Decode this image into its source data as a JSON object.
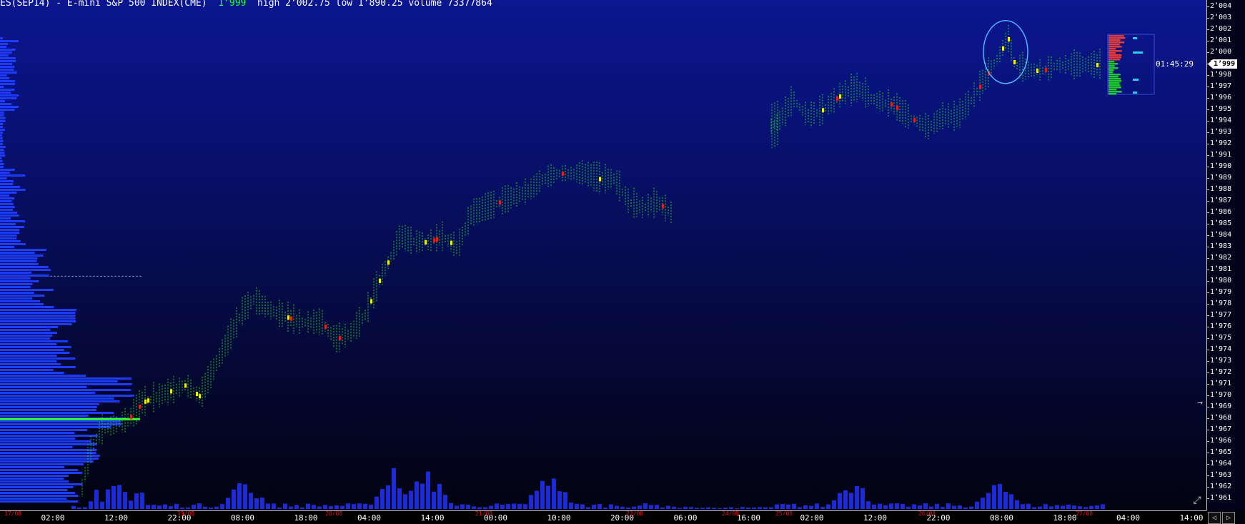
{
  "header": {
    "symbol": "ES(SEP14) - E-mini S&P 500 INDEX(CME)",
    "last_price": "1’999",
    "stats": "high 2’002.75 low 1’890.25 volume 73377864"
  },
  "price_axis": {
    "current_price": "1’999",
    "countdown": "01:45:29"
  },
  "colors": {
    "background_top": "#0b1690",
    "background_bottom": "#02020c",
    "profile": "#1d3cff",
    "poc_line": "#33ff33",
    "bar_green": "#22c92a",
    "bar_yellow": "#f4f400",
    "bar_red": "#e02020",
    "volume": "#1c2bd8",
    "highlight_circle": "#4fb4ff"
  },
  "icons": {
    "crosshair": "arrow-right-icon",
    "expand": "expand-icon",
    "scroll_left": "chevron-left-icon",
    "scroll_right": "chevron-right-icon"
  },
  "chart_data": {
    "type": "market-profile-with-volume",
    "ylim": [
      1960.5,
      2004.5
    ],
    "y_ticks": [
      "2’004",
      "2’003",
      "2’002",
      "2’001",
      "2’000",
      "1’999",
      "1’998",
      "1’997",
      "1’996",
      "1’995",
      "1’994",
      "1’993",
      "1’992",
      "1’991",
      "1’990",
      "1’989",
      "1’988",
      "1’987",
      "1’986",
      "1’985",
      "1’984",
      "1’983",
      "1’982",
      "1’981",
      "1’980",
      "1’979",
      "1’978",
      "1’977",
      "1’976",
      "1’975",
      "1’974",
      "1’973",
      "1’972",
      "1’971",
      "1’970",
      "1’969",
      "1’968",
      "1’967",
      "1’966",
      "1’965",
      "1’964",
      "1’963",
      "1’962",
      "1’961"
    ],
    "x_ticks": [
      "02:00",
      "12:00",
      "22:00",
      "08:00",
      "18:00",
      "04:00",
      "14:00",
      "00:00",
      "10:00",
      "20:00",
      "06:00",
      "16:00",
      "02:00",
      "12:00",
      "22:00",
      "08:00",
      "18:00",
      "04:00",
      "14:00"
    ],
    "date_tags": [
      "17/08",
      "19/08",
      "20/08",
      "21/08",
      "22/08",
      "24/08",
      "25/08",
      "26/08",
      "27/08"
    ],
    "price_path": [
      [
        115,
        1962
      ],
      [
        125,
        1965
      ],
      [
        140,
        1967
      ],
      [
        160,
        1967.5
      ],
      [
        180,
        1968
      ],
      [
        200,
        1969.5
      ],
      [
        220,
        1970
      ],
      [
        240,
        1970.5
      ],
      [
        260,
        1971
      ],
      [
        280,
        1970
      ],
      [
        300,
        1972.5
      ],
      [
        320,
        1975
      ],
      [
        340,
        1977.5
      ],
      [
        355,
        1978.5
      ],
      [
        380,
        1977.5
      ],
      [
        400,
        1977
      ],
      [
        420,
        1976.5
      ],
      [
        450,
        1976.5
      ],
      [
        470,
        1975
      ],
      [
        490,
        1975.5
      ],
      [
        510,
        1977
      ],
      [
        530,
        1980
      ],
      [
        545,
        1982
      ],
      [
        560,
        1984
      ],
      [
        580,
        1983.5
      ],
      [
        600,
        1983.5
      ],
      [
        620,
        1984
      ],
      [
        640,
        1983
      ],
      [
        660,
        1986
      ],
      [
        680,
        1986.5
      ],
      [
        700,
        1987
      ],
      [
        720,
        1987.5
      ],
      [
        740,
        1988
      ],
      [
        760,
        1989
      ],
      [
        780,
        1989.5
      ],
      [
        800,
        1989.5
      ],
      [
        820,
        1989.5
      ],
      [
        840,
        1989
      ],
      [
        860,
        1989
      ],
      [
        880,
        1987
      ],
      [
        900,
        1986.5
      ],
      [
        920,
        1987
      ],
      [
        940,
        1986
      ],
      [
        1030,
        1989
      ],
      [
        1060,
        1993
      ],
      [
        1090,
        1994
      ],
      [
        1110,
        1996
      ],
      [
        1130,
        1994.5
      ],
      [
        1150,
        1995
      ],
      [
        1180,
        1996.5
      ],
      [
        1200,
        1997
      ],
      [
        1220,
        1996
      ],
      [
        1250,
        1995.5
      ],
      [
        1270,
        1994.5
      ],
      [
        1300,
        1993.5
      ],
      [
        1320,
        1994.5
      ],
      [
        1340,
        1994.5
      ],
      [
        1360,
        1996
      ],
      [
        1380,
        1998
      ],
      [
        1400,
        2000
      ],
      [
        1410,
        2001.5
      ],
      [
        1420,
        1999
      ],
      [
        1440,
        1998.5
      ],
      [
        1460,
        1998.5
      ],
      [
        1480,
        1999
      ],
      [
        1500,
        1999
      ],
      [
        1520,
        1999
      ],
      [
        1540,
        1999
      ]
    ],
    "highlight": {
      "x": 1407,
      "y": 2000.2,
      "label": ""
    },
    "poc_price": 1968.1,
    "reference_price": 1980.6
  }
}
